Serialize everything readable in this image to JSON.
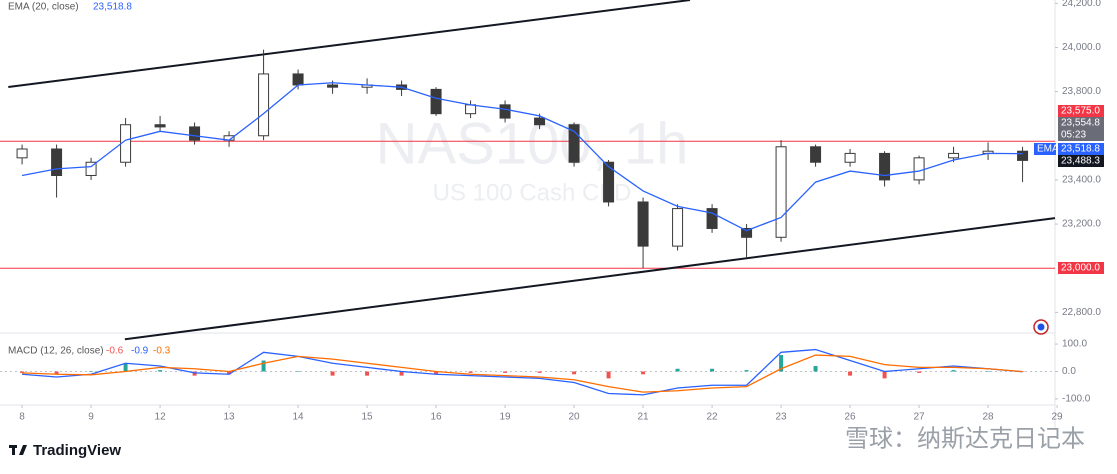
{
  "chart_data": [
    {
      "type": "candlestick",
      "title": "NAS100, 1h",
      "subtitle": "US 100 Cash CFD",
      "x": [
        0,
        0.5,
        1,
        1.5,
        2,
        2.5,
        3,
        3.5,
        4,
        4.5,
        5,
        5.5,
        6,
        6.5,
        7,
        7.5,
        8,
        8.5,
        9,
        9.5,
        10,
        10.5,
        11,
        11.5,
        12,
        12.5,
        13,
        13.5,
        14,
        14.5
      ],
      "open": [
        23500,
        23540,
        23420,
        23480,
        23650,
        23640,
        23580,
        23600,
        23880,
        23830,
        23820,
        23830,
        23810,
        23700,
        23740,
        23680,
        23650,
        23480,
        23300,
        23100,
        23270,
        23180,
        23140,
        23550,
        23480,
        23520,
        23400,
        23500,
        23520,
        23530
      ],
      "high": [
        23560,
        23560,
        23500,
        23680,
        23690,
        23660,
        23620,
        23990,
        23900,
        23850,
        23860,
        23850,
        23820,
        23760,
        23760,
        23700,
        23660,
        23490,
        23320,
        23290,
        23290,
        23200,
        23580,
        23560,
        23540,
        23530,
        23510,
        23550,
        23570,
        23550
      ],
      "low": [
        23470,
        23320,
        23400,
        23460,
        23620,
        23560,
        23550,
        23580,
        23810,
        23790,
        23790,
        23780,
        23690,
        23680,
        23660,
        23630,
        23460,
        23280,
        23000,
        23080,
        23160,
        23050,
        23120,
        23460,
        23460,
        23370,
        23380,
        23480,
        23490,
        23390
      ],
      "close": [
        23540,
        23420,
        23480,
        23650,
        23640,
        23580,
        23600,
        23880,
        23830,
        23820,
        23830,
        23810,
        23700,
        23740,
        23680,
        23650,
        23480,
        23300,
        23100,
        23270,
        23180,
        23140,
        23550,
        23480,
        23520,
        23400,
        23500,
        23520,
        23530,
        23488.3
      ],
      "color": "#3a3a3a",
      "series": [
        {
          "name": "EMA (20, close)",
          "color": "#2962ff",
          "value_label": "23,518.8",
          "values": [
            23420,
            23450,
            23460,
            23580,
            23620,
            23600,
            23580,
            23700,
            23830,
            23840,
            23830,
            23820,
            23770,
            23740,
            23720,
            23690,
            23620,
            23460,
            23350,
            23280,
            23250,
            23170,
            23230,
            23390,
            23440,
            23420,
            23440,
            23490,
            23520,
            23518.8
          ]
        }
      ],
      "xlim": [
        -0.32,
        14.97
      ],
      "xticks": [
        {
          "value": 0,
          "label": "8"
        },
        {
          "value": 1,
          "label": "9"
        },
        {
          "value": 2,
          "label": "12"
        },
        {
          "value": 3,
          "label": "13"
        },
        {
          "value": 4,
          "label": "14"
        },
        {
          "value": 5,
          "label": "15"
        },
        {
          "value": 6,
          "label": "16"
        },
        {
          "value": 7,
          "label": "19"
        },
        {
          "value": 8,
          "label": "20"
        },
        {
          "value": 9,
          "label": "21"
        },
        {
          "value": 10,
          "label": "22"
        },
        {
          "value": 11,
          "label": "23"
        },
        {
          "value": 12,
          "label": "26"
        },
        {
          "value": 13,
          "label": "27"
        },
        {
          "value": 14,
          "label": "28"
        },
        {
          "value": 15,
          "label": "29"
        }
      ],
      "ylim": [
        22720,
        24215
      ],
      "yticks": [
        {
          "value": 24200,
          "label": "24,200.0"
        },
        {
          "value": 24000,
          "label": "24,000.0"
        },
        {
          "value": 23800,
          "label": "23,800.0"
        },
        {
          "value": 23400,
          "label": "23,400.0"
        },
        {
          "value": 23200,
          "label": "23,200.0"
        },
        {
          "value": 22800,
          "label": "22,800.0"
        }
      ],
      "levels": [
        {
          "value": 23575,
          "label": "23,575.0",
          "color": "#f23645"
        },
        {
          "value": 23000,
          "label": "23,000.0",
          "color": "#f23645"
        }
      ],
      "bid": {
        "value": 23554.8,
        "label": "23,554.8",
        "countdown": "05:23"
      },
      "ema_tag": "EMA",
      "last_price": {
        "value": 23488.3,
        "label": "23,488.3"
      },
      "trendlines": [
        {
          "x": [
            -0.2,
            9.68
          ],
          "y": [
            23821,
            24215
          ]
        },
        {
          "x": [
            1.49,
            14.97
          ],
          "y": [
            22678,
            23227
          ]
        }
      ]
    },
    {
      "type": "macd",
      "title": "MACD (12, 26, close)",
      "x": [
        0,
        0.5,
        1,
        1.5,
        2,
        2.5,
        3,
        3.5,
        4,
        4.5,
        5,
        5.5,
        6,
        6.5,
        7,
        7.5,
        8,
        8.5,
        9,
        9.5,
        10,
        10.5,
        11,
        11.5,
        12,
        12.5,
        13,
        13.5,
        14,
        14.5
      ],
      "histogram": {
        "value_label": "-0.6",
        "up_color": "#26a69a",
        "down_color": "#ef5350",
        "values": [
          -5,
          -10,
          2,
          30,
          5,
          -15,
          -10,
          40,
          0,
          -15,
          -15,
          -15,
          -10,
          -5,
          -5,
          -5,
          -10,
          -25,
          -10,
          10,
          10,
          5,
          60,
          20,
          -15,
          -25,
          -5,
          5,
          0,
          -0.6
        ]
      },
      "series": [
        {
          "color": "#2962ff",
          "value_label": "-0.9",
          "values": [
            -10,
            -20,
            -10,
            30,
            20,
            -5,
            -10,
            70,
            55,
            30,
            15,
            0,
            -10,
            -15,
            -20,
            -25,
            -40,
            -80,
            -85,
            -60,
            -50,
            -50,
            70,
            80,
            40,
            0,
            10,
            20,
            10,
            -0.9
          ]
        },
        {
          "color": "#ff6d00",
          "value_label": "-0.3",
          "values": [
            -5,
            -10,
            -12,
            0,
            15,
            10,
            0,
            30,
            55,
            45,
            30,
            15,
            0,
            -10,
            -15,
            -20,
            -30,
            -55,
            -75,
            -70,
            -60,
            -55,
            10,
            60,
            55,
            25,
            15,
            15,
            10,
            -0.3
          ]
        }
      ],
      "ylim": [
        -122,
        133
      ],
      "yticks": [
        {
          "value": 100,
          "label": "100.0"
        },
        {
          "value": 0,
          "label": "0.0"
        },
        {
          "value": -100,
          "label": "-100.0"
        }
      ]
    }
  ],
  "footer": {
    "brand": "TradingView",
    "watermark": "雪球：纳斯达克日记本"
  }
}
